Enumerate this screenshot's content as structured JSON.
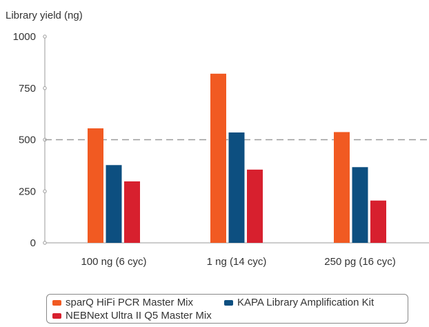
{
  "chart_data": {
    "type": "bar",
    "ylabel": "Library yield (ng)",
    "xlabel": "",
    "ylim": [
      0,
      1000
    ],
    "yticks": [
      "0",
      "250",
      "500",
      "750",
      "1000"
    ],
    "categories": [
      "100 ng (6 cyc)",
      "1 ng (14 cyc)",
      "250 pg (16 cyc)"
    ],
    "reference_line": 500,
    "series": [
      {
        "name": "sparQ HiFi PCR Master Mix",
        "color": "#f15a22",
        "values": [
          555,
          820,
          537
        ]
      },
      {
        "name": "KAPA Library Amplification Kit",
        "color": "#0d4f80",
        "values": [
          377,
          535,
          367
        ]
      },
      {
        "name": "NEBNext Ultra II Q5 Master Mix",
        "color": "#d7202e",
        "values": [
          298,
          355,
          205
        ]
      }
    ],
    "legend_position": "bottom",
    "grid": false
  }
}
